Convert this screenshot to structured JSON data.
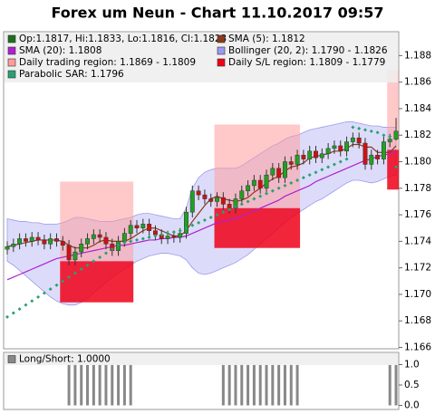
{
  "chart_data": {
    "type": "candlestick",
    "title": "Forex um Neun - Chart 11.10.2017 09:57",
    "ylim": [
      1.1659,
      1.1898
    ],
    "yticks": [
      1.166,
      1.168,
      {
        "value": 1.17,
        "label": "1.170"
      },
      1.172,
      1.174,
      1.176,
      1.178,
      {
        "value": 1.18,
        "label": "1.180"
      },
      1.182,
      1.184,
      1.186,
      1.188
    ],
    "candles": {
      "name": "Op:1.1817, Hi:1.1833, Lo:1.1816, Cl:1.1823",
      "color": "#1f6e1f",
      "color_up": "#22a022",
      "color_down": "#d01010",
      "open": [
        1.1734,
        1.1736,
        1.1738,
        1.1742,
        1.174,
        1.1743,
        1.1741,
        1.1738,
        1.1742,
        1.174,
        1.1737,
        1.1726,
        1.1732,
        1.1738,
        1.1742,
        1.1745,
        1.1743,
        1.1738,
        1.1733,
        1.174,
        1.1746,
        1.1752,
        1.175,
        1.1753,
        1.1748,
        1.1745,
        1.1742,
        1.1744,
        1.1743,
        1.1746,
        1.1762,
        1.1778,
        1.1775,
        1.1772,
        1.177,
        1.1773,
        1.1768,
        1.1765,
        1.1772,
        1.1778,
        1.1782,
        1.1786,
        1.178,
        1.179,
        1.1795,
        1.1788,
        1.18,
        1.1798,
        1.1805,
        1.1802,
        1.1808,
        1.1803,
        1.1806,
        1.181,
        1.1812,
        1.1808,
        1.1815,
        1.1818,
        1.1814,
        1.1798,
        1.1805,
        1.1802,
        1.1815,
        1.1817
      ],
      "high": [
        1.174,
        1.1742,
        1.1746,
        1.1746,
        1.1747,
        1.1747,
        1.1745,
        1.1746,
        1.1746,
        1.1744,
        1.1741,
        1.1736,
        1.1742,
        1.1746,
        1.1749,
        1.1749,
        1.1747,
        1.1742,
        1.1744,
        1.175,
        1.1756,
        1.1756,
        1.1757,
        1.1757,
        1.1752,
        1.1749,
        1.1748,
        1.1748,
        1.175,
        1.1766,
        1.1782,
        1.1782,
        1.1779,
        1.1776,
        1.1777,
        1.1777,
        1.1772,
        1.1776,
        1.1782,
        1.1786,
        1.179,
        1.179,
        1.1794,
        1.1799,
        1.1799,
        1.1804,
        1.1804,
        1.1809,
        1.1809,
        1.1812,
        1.1812,
        1.181,
        1.1814,
        1.1816,
        1.1816,
        1.1819,
        1.1822,
        1.1822,
        1.1818,
        1.1809,
        1.1809,
        1.1819,
        1.1821,
        1.1833
      ],
      "low": [
        1.173,
        1.1732,
        1.1734,
        1.1736,
        1.1736,
        1.1737,
        1.1734,
        1.1734,
        1.1736,
        1.1733,
        1.1722,
        1.1722,
        1.1728,
        1.1734,
        1.1738,
        1.1739,
        1.1734,
        1.1729,
        1.1729,
        1.1736,
        1.1742,
        1.1746,
        1.1746,
        1.1744,
        1.1741,
        1.1738,
        1.1738,
        1.1739,
        1.1739,
        1.1742,
        1.1758,
        1.1771,
        1.1768,
        1.1766,
        1.1766,
        1.1764,
        1.1761,
        1.1761,
        1.1768,
        1.1774,
        1.1778,
        1.1776,
        1.1776,
        1.1786,
        1.1784,
        1.1784,
        1.1794,
        1.1794,
        1.1798,
        1.1798,
        1.1799,
        1.1799,
        1.1802,
        1.1806,
        1.1804,
        1.1804,
        1.1811,
        1.181,
        1.1794,
        1.1794,
        1.1798,
        1.1798,
        1.1811,
        1.1816
      ],
      "close": [
        1.1736,
        1.1738,
        1.1742,
        1.174,
        1.1743,
        1.1741,
        1.1738,
        1.1742,
        1.174,
        1.1737,
        1.1726,
        1.1732,
        1.1738,
        1.1742,
        1.1745,
        1.1743,
        1.1738,
        1.1733,
        1.174,
        1.1746,
        1.1752,
        1.175,
        1.1753,
        1.1748,
        1.1745,
        1.1742,
        1.1744,
        1.1743,
        1.1746,
        1.1762,
        1.1778,
        1.1775,
        1.1772,
        1.177,
        1.1773,
        1.1768,
        1.1765,
        1.1772,
        1.1778,
        1.1782,
        1.1786,
        1.178,
        1.179,
        1.1795,
        1.1788,
        1.18,
        1.1798,
        1.1805,
        1.1802,
        1.1808,
        1.1803,
        1.1806,
        1.181,
        1.1812,
        1.1808,
        1.1815,
        1.1818,
        1.1814,
        1.1798,
        1.1805,
        1.1802,
        1.1815,
        1.1817,
        1.1823
      ]
    },
    "band": {
      "name": "Bollinger (20, 2): 1.1790 - 1.1826",
      "color": "#9a9af0",
      "upper": [
        1.1757,
        1.1756,
        1.1755,
        1.1755,
        1.1754,
        1.1754,
        1.1753,
        1.1753,
        1.1753,
        1.1754,
        1.1756,
        1.1758,
        1.1758,
        1.1757,
        1.1756,
        1.1755,
        1.1755,
        1.1755,
        1.1756,
        1.1757,
        1.1758,
        1.176,
        1.1761,
        1.1761,
        1.176,
        1.1759,
        1.1758,
        1.1757,
        1.1757,
        1.1765,
        1.178,
        1.1788,
        1.1792,
        1.1794,
        1.1795,
        1.1795,
        1.1795,
        1.1795,
        1.1797,
        1.18,
        1.1803,
        1.1806,
        1.1809,
        1.1812,
        1.1814,
        1.1817,
        1.1819,
        1.182,
        1.1822,
        1.1824,
        1.1825,
        1.1826,
        1.1827,
        1.1828,
        1.1829,
        1.183,
        1.183,
        1.1829,
        1.1828,
        1.1827,
        1.1827,
        1.1826,
        1.1826,
        1.1826
      ],
      "lower": [
        1.1725,
        1.1722,
        1.1718,
        1.1714,
        1.171,
        1.1706,
        1.1702,
        1.1698,
        1.1695,
        1.1693,
        1.1692,
        1.1692,
        1.1694,
        1.1697,
        1.1701,
        1.1705,
        1.1709,
        1.1713,
        1.1716,
        1.1719,
        1.1722,
        1.1725,
        1.1727,
        1.1729,
        1.173,
        1.1731,
        1.1731,
        1.173,
        1.1729,
        1.1726,
        1.172,
        1.1716,
        1.1715,
        1.1716,
        1.1718,
        1.172,
        1.1722,
        1.1724,
        1.1727,
        1.173,
        1.1734,
        1.1738,
        1.1742,
        1.1746,
        1.175,
        1.1754,
        1.1758,
        1.1761,
        1.1764,
        1.1767,
        1.177,
        1.1772,
        1.1775,
        1.1778,
        1.1781,
        1.1784,
        1.1786,
        1.1786,
        1.1785,
        1.1784,
        1.1785,
        1.1787,
        1.1789,
        1.179
      ]
    },
    "regions": [
      {
        "name": "Daily trading region: 1.1869 - 1.1809",
        "color": "#ff9c9c",
        "ranges": [
          {
            "from": 9,
            "to": 20,
            "high": 1.1785,
            "low": 1.1725
          },
          {
            "from": 34,
            "to": 47,
            "high": 1.1828,
            "low": 1.1765
          },
          {
            "from": 62,
            "to": 63,
            "high": 1.1869,
            "low": 1.1809
          }
        ]
      },
      {
        "name": "Daily S/L region: 1.1809 - 1.1779",
        "color": "#f00018",
        "ranges": [
          {
            "from": 9,
            "to": 20,
            "high": 1.1725,
            "low": 1.1694
          },
          {
            "from": 34,
            "to": 47,
            "high": 1.1765,
            "low": 1.1735
          },
          {
            "from": 62,
            "to": 63,
            "high": 1.1809,
            "low": 1.1779
          }
        ]
      }
    ],
    "lines": [
      {
        "name": "SMA (5): 1.1812",
        "color": "#8b3a1a",
        "values": [
          1.1736,
          1.1737,
          1.1738,
          1.1739,
          1.174,
          1.1741,
          1.1741,
          1.1741,
          1.1741,
          1.174,
          1.1737,
          1.1735,
          1.1735,
          1.1735,
          1.1737,
          1.174,
          1.1741,
          1.174,
          1.174,
          1.174,
          1.1742,
          1.1745,
          1.1748,
          1.175,
          1.175,
          1.1748,
          1.1746,
          1.1744,
          1.1744,
          1.1748,
          1.1755,
          1.1761,
          1.1767,
          1.1772,
          1.1774,
          1.1772,
          1.1771,
          1.177,
          1.1771,
          1.1773,
          1.1777,
          1.178,
          1.1784,
          1.1787,
          1.1789,
          1.1793,
          1.1796,
          1.1797,
          1.1799,
          1.1803,
          1.1804,
          1.1805,
          1.1806,
          1.1808,
          1.1808,
          1.181,
          1.1813,
          1.1813,
          1.1811,
          1.1811,
          1.1807,
          1.1807,
          1.1807,
          1.1812
        ]
      },
      {
        "name": "SMA (20): 1.1808",
        "color": "#b020d0",
        "values": [
          1.1711,
          1.1713,
          1.1715,
          1.1717,
          1.1719,
          1.1721,
          1.1723,
          1.1725,
          1.1727,
          1.1728,
          1.1729,
          1.173,
          1.1731,
          1.1732,
          1.1733,
          1.1734,
          1.1735,
          1.1736,
          1.1737,
          1.1737,
          1.1738,
          1.1739,
          1.174,
          1.1741,
          1.1741,
          1.1742,
          1.1742,
          1.1743,
          1.1743,
          1.1744,
          1.1746,
          1.1748,
          1.175,
          1.1752,
          1.1754,
          1.1755,
          1.1756,
          1.1757,
          1.1759,
          1.1761,
          1.1763,
          1.1765,
          1.1767,
          1.1769,
          1.1771,
          1.1774,
          1.1776,
          1.1778,
          1.178,
          1.1782,
          1.1785,
          1.1787,
          1.1789,
          1.1791,
          1.1793,
          1.1795,
          1.1797,
          1.1799,
          1.1801,
          1.1802,
          1.1804,
          1.1805,
          1.1806,
          1.1808
        ]
      }
    ],
    "sar": {
      "name": "Parabolic SAR: 1.1796",
      "color": "#2aa070",
      "values": [
        1.1683,
        1.1686,
        1.1689,
        1.1692,
        1.1695,
        1.1698,
        1.1701,
        1.1704,
        1.1707,
        1.171,
        1.1713,
        1.1716,
        1.1719,
        1.1722,
        1.1725,
        1.1728,
        1.1731,
        1.1734,
        1.1737,
        1.1739,
        1.174,
        1.1741,
        1.1742,
        1.1743,
        1.1744,
        1.1745,
        1.1746,
        1.1747,
        1.1748,
        1.175,
        1.1752,
        1.1754,
        1.1756,
        1.1758,
        1.176,
        1.1762,
        1.1764,
        1.1766,
        1.1768,
        1.177,
        1.1772,
        1.1774,
        1.1776,
        1.1778,
        1.178,
        1.1782,
        1.1784,
        1.1786,
        1.1788,
        1.179,
        1.1792,
        1.1794,
        1.1796,
        1.1798,
        1.18,
        1.1802,
        1.1826,
        1.1825,
        1.1824,
        1.1823,
        1.1822,
        1.182,
        1.1819,
        1.1796
      ]
    },
    "panel": {
      "type": "bar",
      "name": "Long/Short: 1.0000",
      "color": "#888888",
      "ylim": [
        -0.1,
        1.3
      ],
      "yticks": [
        {
          "value": 0,
          "label": "0.0"
        },
        {
          "value": 0.5,
          "label": "0.5"
        },
        {
          "value": 1,
          "label": "1.0"
        }
      ],
      "values": [
        0,
        0,
        0,
        0,
        0,
        0,
        0,
        0,
        0,
        0,
        1,
        1,
        1,
        1,
        1,
        1,
        1,
        1,
        1,
        1,
        1,
        0,
        0,
        0,
        0,
        0,
        0,
        0,
        0,
        0,
        0,
        0,
        0,
        0,
        0,
        1,
        1,
        1,
        1,
        1,
        1,
        1,
        1,
        1,
        1,
        1,
        1,
        1,
        0,
        0,
        0,
        0,
        0,
        0,
        0,
        0,
        0,
        0,
        0,
        0,
        0,
        0,
        1,
        1
      ]
    }
  }
}
